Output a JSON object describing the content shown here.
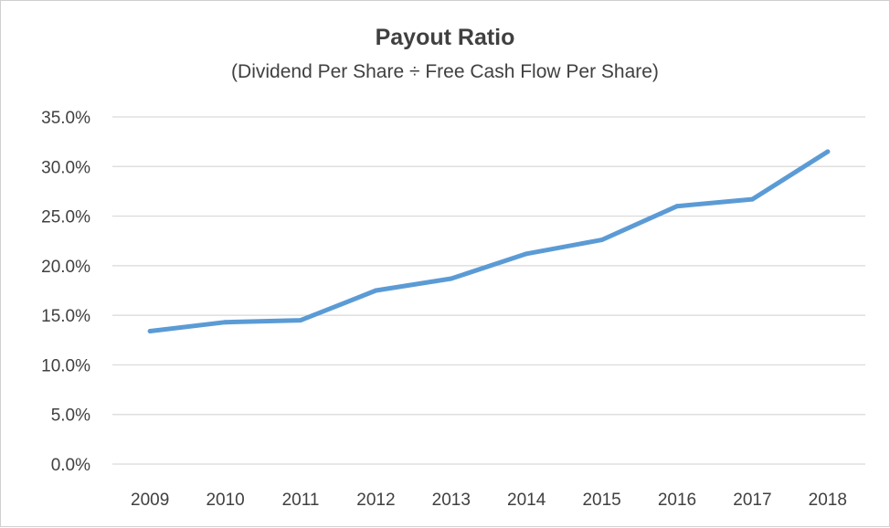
{
  "chart_data": {
    "type": "line",
    "title": "Payout Ratio",
    "subtitle": "(Dividend Per Share ÷ Free Cash Flow Per Share)",
    "xlabel": "",
    "ylabel": "",
    "categories": [
      "2009",
      "2010",
      "2011",
      "2012",
      "2013",
      "2014",
      "2015",
      "2016",
      "2017",
      "2018"
    ],
    "series": [
      {
        "values": [
          13.4,
          14.3,
          14.5,
          17.5,
          18.7,
          21.2,
          22.6,
          26.0,
          26.7,
          31.5
        ]
      }
    ],
    "ylim": [
      0,
      35
    ],
    "ytick_labels": [
      "0.0%",
      "5.0%",
      "10.0%",
      "15.0%",
      "20.0%",
      "25.0%",
      "30.0%",
      "35.0%"
    ],
    "grid": true,
    "legend": "none",
    "colors": {
      "line": "#5b9bd5",
      "grid": "#d9d9d9",
      "text": "#404040"
    }
  }
}
